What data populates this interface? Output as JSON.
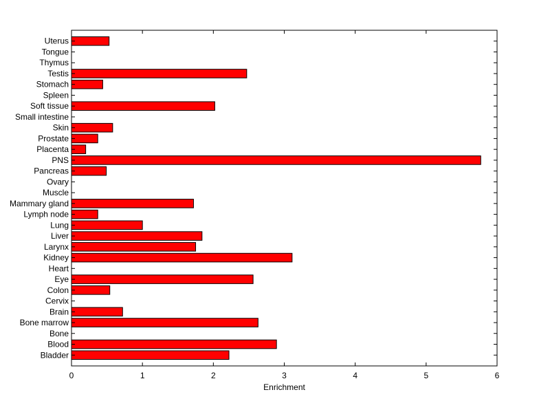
{
  "chart_data": {
    "type": "bar",
    "orientation": "horizontal",
    "xlabel": "Enrichment",
    "ylabel": "",
    "title": "",
    "xlim": [
      0,
      6
    ],
    "xticks": [
      "0",
      "1",
      "2",
      "3",
      "4",
      "5",
      "6"
    ],
    "grid": false,
    "legend": "none",
    "bar_color": "#ff0000",
    "bar_edge_color": "#000000",
    "categories": [
      "Bladder",
      "Blood",
      "Bone",
      "Bone marrow",
      "Brain",
      "Cervix",
      "Colon",
      "Eye",
      "Heart",
      "Kidney",
      "Larynx",
      "Liver",
      "Lung",
      "Lymph node",
      "Mammary gland",
      "Muscle",
      "Ovary",
      "Pancreas",
      "PNS",
      "Placenta",
      "Prostate",
      "Skin",
      "Small intestine",
      "Soft tissue",
      "Spleen",
      "Stomach",
      "Testis",
      "Thymus",
      "Tongue",
      "Uterus"
    ],
    "values": [
      2.22,
      2.89,
      0,
      2.63,
      0.72,
      0,
      0.54,
      2.56,
      0,
      3.11,
      1.75,
      1.84,
      1.0,
      0.37,
      1.72,
      0,
      0,
      0.49,
      5.77,
      0.2,
      0.37,
      0.58,
      0,
      2.02,
      0,
      0.44,
      2.47,
      0,
      0,
      0.53
    ]
  }
}
